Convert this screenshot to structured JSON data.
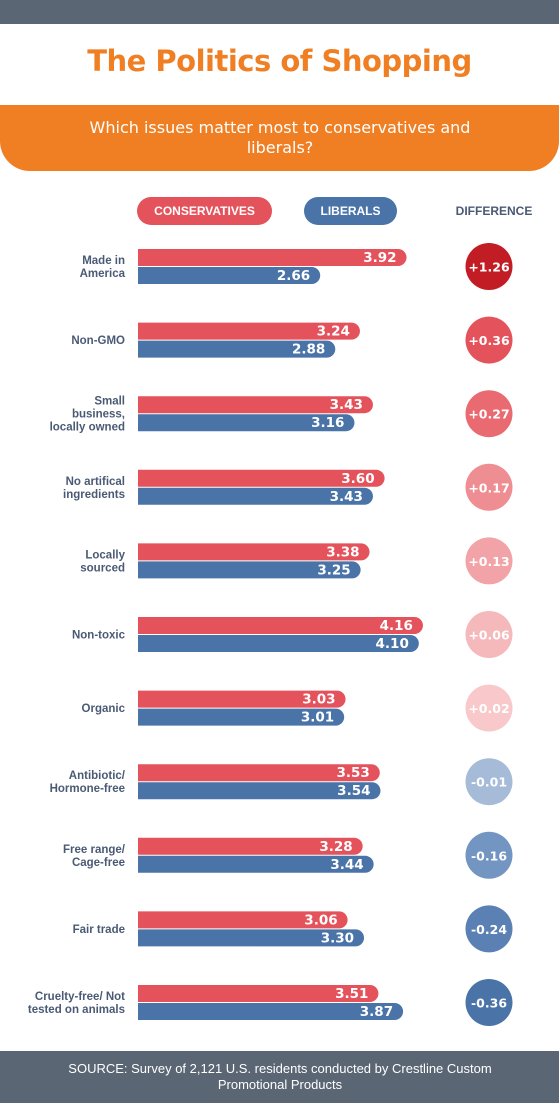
{
  "header": {
    "title": "The Politics of Shopping",
    "subtitle": "Which issues matter most to conservatives and liberals?"
  },
  "legend": {
    "conservatives": "CONSERVATIVES",
    "liberals": "LIBERALS",
    "difference": "DIFFERENCE"
  },
  "footer": {
    "source": "SOURCE:  Survey of 2,121 U.S. residents conducted by Crestline Custom Promotional Products"
  },
  "colors": {
    "conservatives": "#e4535c",
    "liberals": "#4a73a8",
    "accent": "#f07f24",
    "header_footer": "#5a6673"
  },
  "chart_data": {
    "type": "bar",
    "orientation": "horizontal",
    "categories": [
      "Made in America",
      "Non-GMO",
      "Small business, locally owned",
      "No artifical ingredients",
      "Locally sourced",
      "Non-toxic",
      "Organic",
      "Antibiotic/ Hormone-free",
      "Free range/ Cage-free",
      "Fair trade",
      "Cruelty-free/ Not tested on animals"
    ],
    "series": [
      {
        "name": "CONSERVATIVES",
        "values": [
          3.92,
          3.24,
          3.43,
          3.6,
          3.38,
          4.16,
          3.03,
          3.53,
          3.28,
          3.06,
          3.51
        ]
      },
      {
        "name": "LIBERALS",
        "values": [
          2.66,
          2.88,
          3.16,
          3.43,
          3.25,
          4.1,
          3.01,
          3.54,
          3.44,
          3.3,
          3.87
        ]
      }
    ],
    "difference": [
      1.26,
      0.36,
      0.27,
      0.17,
      0.13,
      0.06,
      0.02,
      -0.01,
      -0.16,
      -0.24,
      -0.36
    ],
    "value_labels": {
      "conservatives": [
        "3.92",
        "3.24",
        "3.43",
        "3.60",
        "3.38",
        "4.16",
        "3.03",
        "3.53",
        "3.28",
        "3.06",
        "3.51"
      ],
      "liberals": [
        "2.66",
        "2.88",
        "3.16",
        "3.43",
        "3.25",
        "4.10",
        "3.01",
        "3.54",
        "3.44",
        "3.30",
        "3.87"
      ],
      "difference": [
        "+1.26",
        "+0.36",
        "+0.27",
        "+0.17",
        "+0.13",
        "+0.06",
        "+0.02",
        "-0.01",
        "-0.16",
        "-0.24",
        "-0.36"
      ]
    },
    "grid": false
  }
}
